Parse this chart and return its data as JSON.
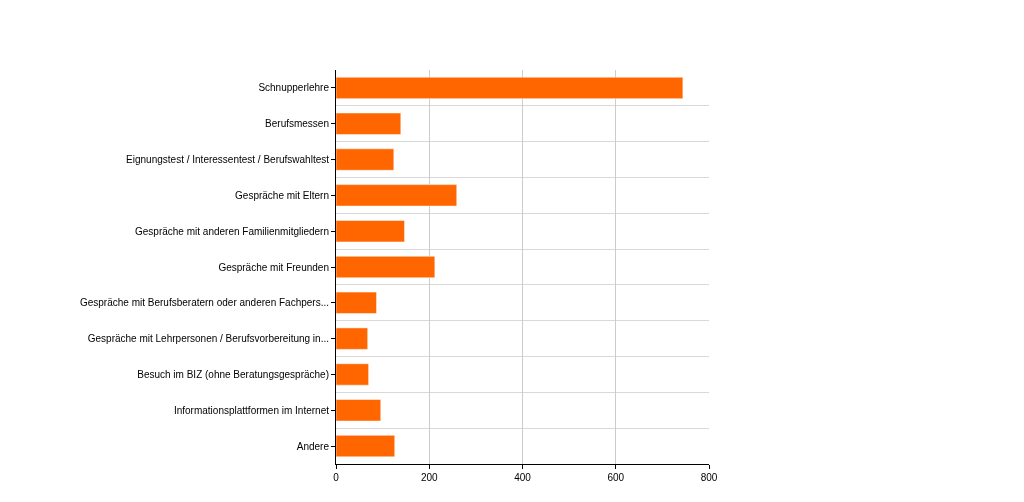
{
  "chart_data": {
    "type": "bar",
    "orientation": "horizontal",
    "categories": [
      "Schnupperlehre",
      "Berufsmessen",
      "Eignungstest / Interessentest / Berufswahltest",
      "Gespräche mit Eltern",
      "Gespräche mit anderen Familienmitgliedern",
      "Gespräche mit Freunden",
      "Gespräche mit Berufsberatern oder anderen Fachpers...",
      "Gespräche mit Lehrpersonen / Berufsvorbereitung in...",
      "Besuch im BIZ (ohne Beratungsgespräche)",
      "Informationsplattformen im Internet",
      "Andere"
    ],
    "values": [
      744,
      139,
      124,
      259,
      147,
      212,
      87,
      68,
      70,
      96,
      126
    ],
    "color": "#ff6600",
    "xlim": [
      0,
      800
    ],
    "xticks": [
      0,
      200,
      400,
      600,
      800
    ],
    "grid": true,
    "legend": false
  }
}
